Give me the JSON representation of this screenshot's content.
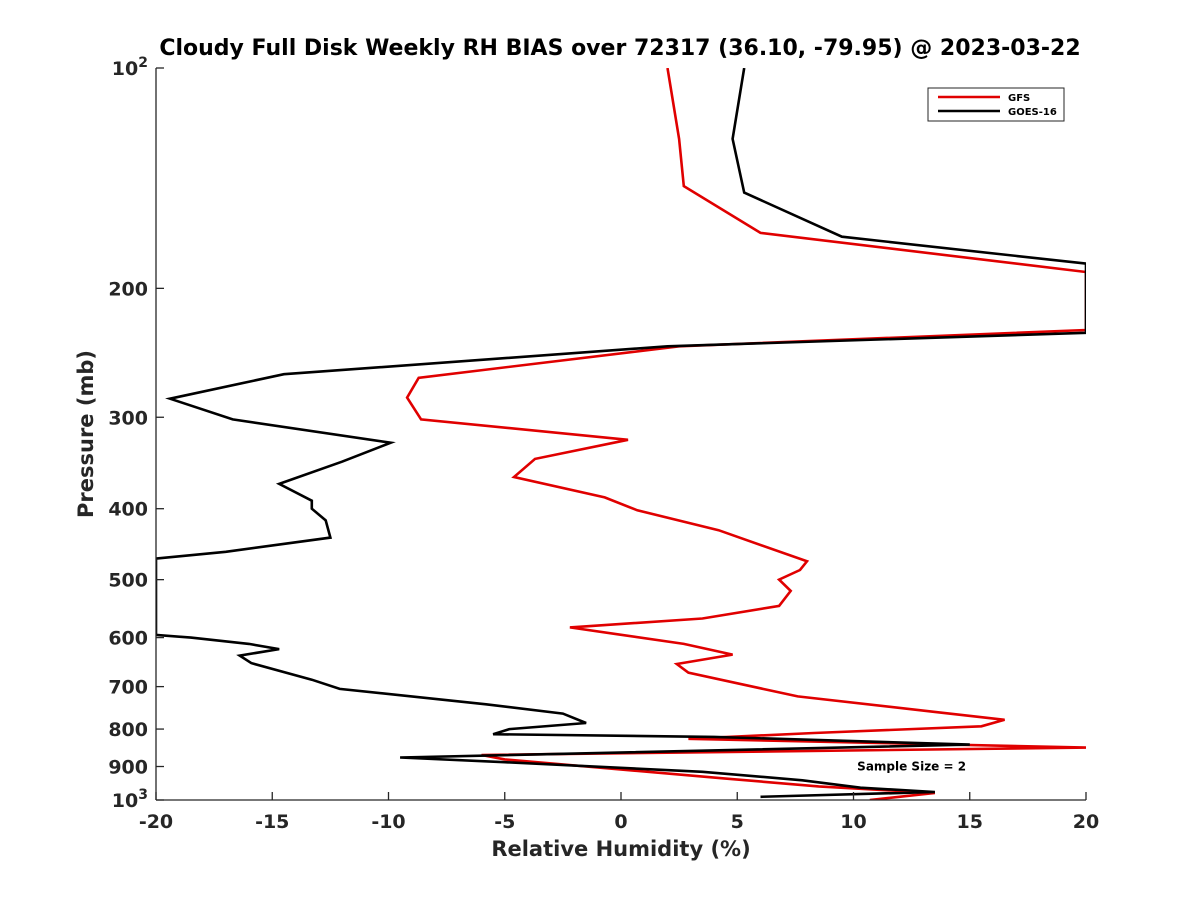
{
  "chart_data": {
    "type": "line",
    "title": "Cloudy Full Disk Weekly RH BIAS over 72317 (36.10, -79.95) @ 2023-03-22",
    "xlabel": "Relative Humidity (%)",
    "ylabel": "Pressure (mb)",
    "xlim": [
      -20,
      20
    ],
    "ylim": [
      100,
      1000
    ],
    "yscale": "log",
    "y_reversed": true,
    "xticks": [
      -20,
      -15,
      -10,
      -5,
      0,
      5,
      10,
      15,
      20
    ],
    "yticks": [
      {
        "value": 100,
        "label": "10",
        "sup": "2"
      },
      {
        "value": 200,
        "label": "200",
        "sup": ""
      },
      {
        "value": 300,
        "label": "300",
        "sup": ""
      },
      {
        "value": 400,
        "label": "400",
        "sup": ""
      },
      {
        "value": 500,
        "label": "500",
        "sup": ""
      },
      {
        "value": 600,
        "label": "600",
        "sup": ""
      },
      {
        "value": 700,
        "label": "700",
        "sup": ""
      },
      {
        "value": 800,
        "label": "800",
        "sup": ""
      },
      {
        "value": 900,
        "label": "900",
        "sup": ""
      },
      {
        "value": 1000,
        "label": "10",
        "sup": "3"
      }
    ],
    "grid": false,
    "legend_position": "top-right",
    "series": [
      {
        "name": "GFS",
        "color": "#e00000",
        "points": [
          [
            2.0,
            100
          ],
          [
            2.5,
            125
          ],
          [
            2.7,
            145
          ],
          [
            6.0,
            168
          ],
          [
            20.0,
            190
          ],
          [
            20.0,
            228
          ],
          [
            2.5,
            240
          ],
          [
            -8.7,
            265
          ],
          [
            -9.2,
            282
          ],
          [
            -8.6,
            302
          ],
          [
            0.3,
            322
          ],
          [
            -3.7,
            342
          ],
          [
            -4.6,
            362
          ],
          [
            -0.7,
            386
          ],
          [
            0.7,
            402
          ],
          [
            4.2,
            428
          ],
          [
            8.0,
            472
          ],
          [
            7.7,
            485
          ],
          [
            6.8,
            500
          ],
          [
            7.3,
            518
          ],
          [
            6.8,
            543
          ],
          [
            3.5,
            565
          ],
          [
            -2.2,
            581
          ],
          [
            2.7,
            612
          ],
          [
            4.8,
            633
          ],
          [
            2.4,
            652
          ],
          [
            2.9,
            670
          ],
          [
            7.6,
            722
          ],
          [
            13.5,
            758
          ],
          [
            16.5,
            777
          ],
          [
            15.5,
            793
          ],
          [
            8.3,
            810
          ],
          [
            2.9,
            825
          ],
          [
            20.0,
            848
          ],
          [
            -6.0,
            868
          ],
          [
            -5.0,
            880
          ],
          [
            4.5,
            935
          ],
          [
            8.5,
            958
          ],
          [
            13.5,
            978
          ],
          [
            10.7,
            1000
          ]
        ]
      },
      {
        "name": "GOES-16",
        "color": "#000000",
        "points": [
          [
            5.3,
            100
          ],
          [
            4.8,
            125
          ],
          [
            5.3,
            148
          ],
          [
            9.5,
            170
          ],
          [
            20.0,
            185
          ],
          [
            20.0,
            230
          ],
          [
            2.0,
            240
          ],
          [
            -14.5,
            262
          ],
          [
            -19.4,
            283
          ],
          [
            -16.7,
            302
          ],
          [
            -9.9,
            325
          ],
          [
            -12.0,
            345
          ],
          [
            -14.7,
            370
          ],
          [
            -13.3,
            390
          ],
          [
            -13.3,
            400
          ],
          [
            -12.7,
            415
          ],
          [
            -12.5,
            438
          ],
          [
            -17.0,
            458
          ],
          [
            -20.0,
            468
          ],
          [
            -20.0,
            595
          ],
          [
            -18.5,
            600
          ],
          [
            -16.0,
            612
          ],
          [
            -14.7,
            622
          ],
          [
            -16.4,
            635
          ],
          [
            -15.9,
            650
          ],
          [
            -13.3,
            685
          ],
          [
            -12.1,
            705
          ],
          [
            -5.8,
            740
          ],
          [
            -2.5,
            762
          ],
          [
            -1.5,
            785
          ],
          [
            -4.8,
            800
          ],
          [
            -5.5,
            813
          ],
          [
            4.0,
            820
          ],
          [
            15.0,
            840
          ],
          [
            -9.5,
            875
          ],
          [
            -5.0,
            888
          ],
          [
            3.5,
            915
          ],
          [
            7.8,
            940
          ],
          [
            10.3,
            962
          ],
          [
            13.5,
            975
          ],
          [
            6.0,
            990
          ]
        ]
      }
    ],
    "annotations": [
      {
        "text": "Sample Size = 2",
        "x": 12.5,
        "y": 900
      }
    ]
  }
}
